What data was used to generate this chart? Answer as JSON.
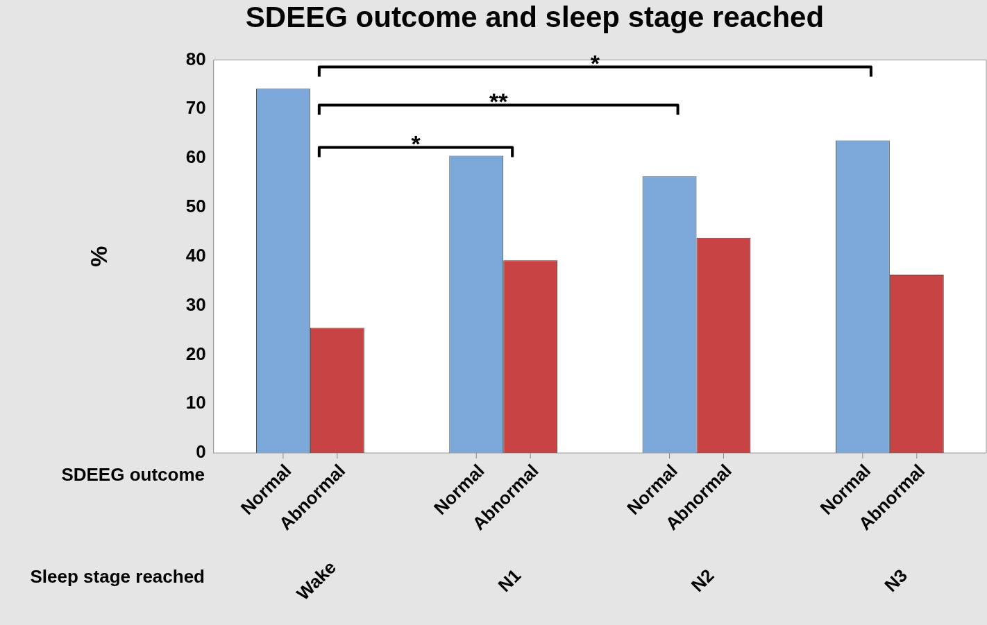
{
  "chart_data": {
    "type": "bar",
    "title": "SDEEG outcome and sleep stage reached",
    "xlabel": "Sleep stage reached",
    "ylabel": "%",
    "legend_title": "SDEEG outcome",
    "categories": [
      "Wake",
      "N1",
      "N2",
      "N3"
    ],
    "series": [
      {
        "name": "Normal",
        "color": "#7ba7d9",
        "values": [
          74.2,
          60.5,
          56.3,
          63.6
        ]
      },
      {
        "name": "Abnormal",
        "color": "#c84444",
        "values": [
          25.5,
          39.2,
          43.8,
          36.3
        ]
      }
    ],
    "ylim": [
      0,
      80
    ],
    "yticks": [
      0,
      10,
      20,
      30,
      40,
      50,
      60,
      70,
      80
    ],
    "grid": false,
    "legend": false,
    "annotations": [
      "*",
      "**",
      "*"
    ]
  }
}
